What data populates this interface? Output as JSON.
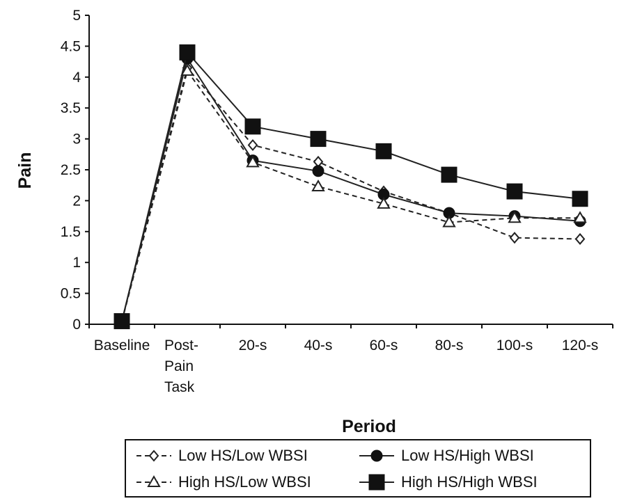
{
  "chart_data": {
    "type": "line",
    "xlabel": "Period",
    "ylabel": "Pain",
    "ylim": [
      0,
      5
    ],
    "yticks": [
      "0",
      "0.5",
      "1",
      "1.5",
      "2",
      "2.5",
      "3",
      "3.5",
      "4",
      "4.5",
      "5"
    ],
    "categories": [
      [
        "Baseline"
      ],
      [
        "Post-",
        "Pain",
        "Task"
      ],
      [
        "20-s"
      ],
      [
        "40-s"
      ],
      [
        "60-s"
      ],
      [
        "80-s"
      ],
      [
        "100-s"
      ],
      [
        "120-s"
      ]
    ],
    "grid": false,
    "legend_position": "bottom",
    "series": [
      {
        "name": "Low HS/Low WBSI",
        "marker": "diamond-open",
        "dash": true,
        "values": [
          0.05,
          4.15,
          2.9,
          2.63,
          2.15,
          1.8,
          1.4,
          1.38
        ]
      },
      {
        "name": "Low HS/High WBSI",
        "marker": "circle-filled",
        "dash": false,
        "values": [
          0.05,
          4.3,
          2.65,
          2.48,
          2.1,
          1.8,
          1.75,
          1.67
        ]
      },
      {
        "name": "High HS/Low WBSI",
        "marker": "triangle-open",
        "dash": true,
        "values": [
          0.05,
          4.1,
          2.62,
          2.23,
          1.95,
          1.65,
          1.72,
          1.72
        ]
      },
      {
        "name": "High HS/High WBSI",
        "marker": "square-filled",
        "dash": false,
        "values": [
          0.05,
          4.4,
          3.2,
          3.0,
          2.8,
          2.42,
          2.15,
          2.03
        ]
      }
    ]
  }
}
